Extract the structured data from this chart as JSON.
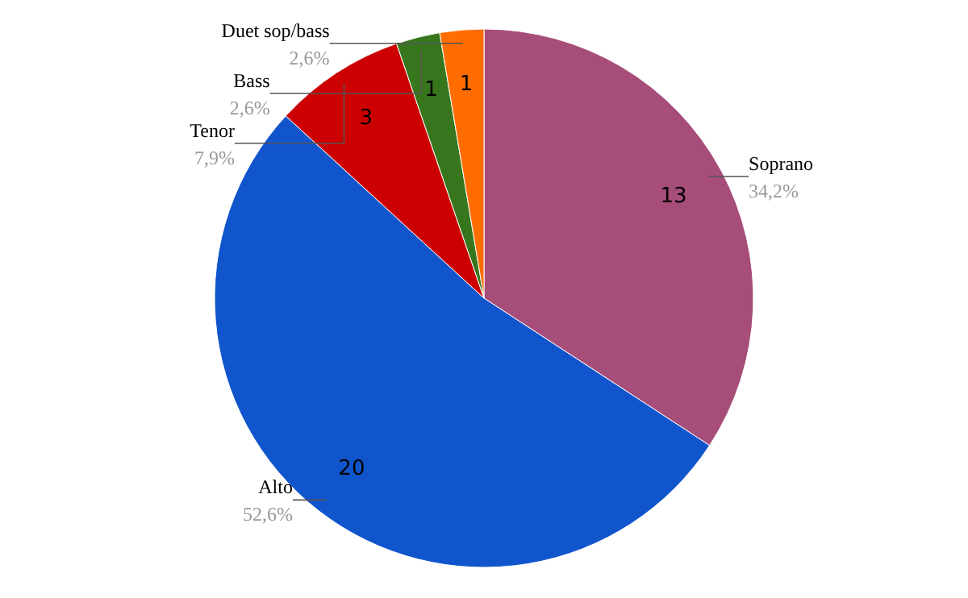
{
  "chart_data": {
    "type": "pie",
    "categories": [
      "Soprano",
      "Alto",
      "Tenor",
      "Bass",
      "Duet sop/bass"
    ],
    "values": [
      13,
      20,
      3,
      1,
      1
    ],
    "colors": [
      "#a64d79",
      "#1155cc",
      "#cc0000",
      "#38761d",
      "#ff6d01"
    ],
    "data_labels": true,
    "annotations": [
      "34,2%",
      "52,6%",
      "7,9%",
      "2,6%",
      "2,6%"
    ]
  }
}
